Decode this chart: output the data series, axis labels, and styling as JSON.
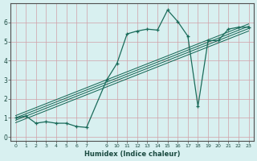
{
  "xlabel": "Humidex (Indice chaleur)",
  "bg_color": "#d8f0f0",
  "grid_color": "#c0d8d8",
  "line_color": "#1a6b5a",
  "xlim": [
    -0.5,
    23.5
  ],
  "ylim": [
    -0.2,
    7.0
  ],
  "xtick_vals": [
    0,
    1,
    2,
    3,
    4,
    5,
    6,
    7,
    9,
    10,
    11,
    12,
    13,
    14,
    15,
    16,
    17,
    18,
    19,
    20,
    21,
    22,
    23
  ],
  "ytick_vals": [
    0,
    1,
    2,
    3,
    4,
    5,
    6
  ],
  "data_x": [
    0,
    1,
    2,
    3,
    4,
    5,
    6,
    7,
    9,
    10,
    11,
    12,
    13,
    14,
    15,
    16,
    17,
    18,
    19,
    20,
    21,
    22,
    23
  ],
  "data_y": [
    1.0,
    1.1,
    0.72,
    0.8,
    0.72,
    0.72,
    0.55,
    0.5,
    3.0,
    3.85,
    5.4,
    5.55,
    5.65,
    5.6,
    6.65,
    6.05,
    5.28,
    1.6,
    5.05,
    5.05,
    5.65,
    5.75,
    5.75
  ],
  "reg_lines": [
    {
      "x0": 0,
      "y0": 0.75,
      "x1": 23,
      "y1": 5.55
    },
    {
      "x0": 0,
      "y0": 0.88,
      "x1": 23,
      "y1": 5.68
    },
    {
      "x0": 0,
      "y0": 1.0,
      "x1": 23,
      "y1": 5.8
    },
    {
      "x0": 0,
      "y0": 1.12,
      "x1": 23,
      "y1": 5.92
    }
  ]
}
